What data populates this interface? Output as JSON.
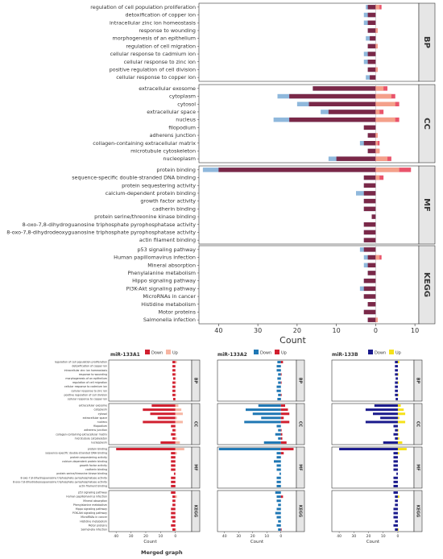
{
  "chart_data": [
    {
      "type": "bar",
      "orientation": "horizontal",
      "xlabel": "Count",
      "xlim": [
        -45,
        11
      ],
      "xticks": [
        "40",
        "30",
        "20",
        "10",
        "0",
        "10"
      ],
      "series_colors": {
        "down_a": "#7a2848",
        "up_a": "#f4a08a",
        "down_b": "#8fb8dc",
        "up_b": "#e9546b"
      },
      "facets": [
        {
          "name": "BP",
          "terms": [
            {
              "label": "regulation of cell population proliferation",
              "down": 2,
              "down_alt": 2.5,
              "up": 1,
              "up_alt": 1.5
            },
            {
              "label": "detoxification of copper ion",
              "down": 2,
              "down_alt": 3,
              "up": 0,
              "up_alt": 0
            },
            {
              "label": "intracellular zinc ion homeostasis",
              "down": 2,
              "down_alt": 3,
              "up": 0,
              "up_alt": 0
            },
            {
              "label": "response to wounding",
              "down": 2,
              "down_alt": 2,
              "up": 0.5,
              "up_alt": 0.5
            },
            {
              "label": "morphogenesis of an epithelium",
              "down": 1.5,
              "down_alt": 2.5,
              "up": 0,
              "up_alt": 0
            },
            {
              "label": "regulation of cell migration",
              "down": 2,
              "down_alt": 2,
              "up": 0.5,
              "up_alt": 0.5
            },
            {
              "label": "cellular response to cadmium ion",
              "down": 2,
              "down_alt": 3,
              "up": 0,
              "up_alt": 0
            },
            {
              "label": "cellular response to zinc ion",
              "down": 2,
              "down_alt": 3,
              "up": 0,
              "up_alt": 0
            },
            {
              "label": "positive regulation of cell division",
              "down": 2,
              "down_alt": 2,
              "up": 0.5,
              "up_alt": 0.5
            },
            {
              "label": "cellular response to copper ion",
              "down": 1.5,
              "down_alt": 2.5,
              "up": 0,
              "up_alt": 0
            }
          ]
        },
        {
          "name": "CC",
          "terms": [
            {
              "label": "extracellular exosome",
              "down": 16,
              "down_alt": 16,
              "up": 2,
              "up_alt": 3
            },
            {
              "label": "cytoplasm",
              "down": 22,
              "down_alt": 25,
              "up": 4,
              "up_alt": 5
            },
            {
              "label": "cytosol",
              "down": 17,
              "down_alt": 20,
              "up": 5,
              "up_alt": 6
            },
            {
              "label": "extracellular space",
              "down": 12,
              "down_alt": 14,
              "up": 1,
              "up_alt": 2
            },
            {
              "label": "nucleus",
              "down": 22,
              "down_alt": 26,
              "up": 5,
              "up_alt": 6
            },
            {
              "label": "filopodium",
              "down": 3,
              "down_alt": 3,
              "up": 0,
              "up_alt": 0
            },
            {
              "label": "adherens junction",
              "down": 2,
              "down_alt": 2,
              "up": 0.5,
              "up_alt": 0.5
            },
            {
              "label": "collagen-containing extracellular matrix",
              "down": 3,
              "down_alt": 4,
              "up": 0.5,
              "up_alt": 1
            },
            {
              "label": "microtubule cytoskeleton",
              "down": 2,
              "down_alt": 2,
              "up": 1,
              "up_alt": 1
            },
            {
              "label": "nucleoplasm",
              "down": 10,
              "down_alt": 12,
              "up": 3,
              "up_alt": 4
            }
          ]
        },
        {
          "name": "MF",
          "terms": [
            {
              "label": "protein binding",
              "down": 40,
              "down_alt": 44,
              "up": 6,
              "up_alt": 9
            },
            {
              "label": "sequence-specific double-stranded DNA binding",
              "down": 3,
              "down_alt": 3,
              "up": 1,
              "up_alt": 2
            },
            {
              "label": "protein sequestering activity",
              "down": 3,
              "down_alt": 3,
              "up": 0,
              "up_alt": 0
            },
            {
              "label": "calcium-dependent protein binding",
              "down": 3,
              "down_alt": 5,
              "up": 0,
              "up_alt": 0
            },
            {
              "label": "growth factor activity",
              "down": 3,
              "down_alt": 3,
              "up": 0,
              "up_alt": 0
            },
            {
              "label": "cadherin binding",
              "down": 3,
              "down_alt": 3,
              "up": 0,
              "up_alt": 0
            },
            {
              "label": "protein serine/threonine kinase binding",
              "down": 1,
              "down_alt": 1,
              "up": 0,
              "up_alt": 0
            },
            {
              "label": "8-oxo-7,8-dihydroguanosine triphosphate pyrophosphatase activity",
              "down": 3,
              "down_alt": 3,
              "up": 0,
              "up_alt": 0
            },
            {
              "label": "8-oxo-7,8-dihydrodeoxyguanosine triphosphate pyrophosphatase activity",
              "down": 3,
              "down_alt": 3,
              "up": 0,
              "up_alt": 0
            },
            {
              "label": "actin filament binding",
              "down": 3,
              "down_alt": 3,
              "up": 0,
              "up_alt": 0
            }
          ]
        },
        {
          "name": "KEGG",
          "terms": [
            {
              "label": "p53 signaling pathway",
              "down": 3,
              "down_alt": 4,
              "up": 0,
              "up_alt": 0
            },
            {
              "label": "Human papillomavirus infection",
              "down": 2,
              "down_alt": 3,
              "up": 1,
              "up_alt": 1.5
            },
            {
              "label": "Mineral absorption",
              "down": 2,
              "down_alt": 3,
              "up": 0,
              "up_alt": 0
            },
            {
              "label": "Phenylalanine metabolism",
              "down": 2,
              "down_alt": 2,
              "up": 0,
              "up_alt": 0
            },
            {
              "label": "Hippo signaling pathway",
              "down": 3,
              "down_alt": 3,
              "up": 0,
              "up_alt": 0
            },
            {
              "label": "PI3K-Akt signaling pathway",
              "down": 3,
              "down_alt": 4,
              "up": 0,
              "up_alt": 0
            },
            {
              "label": "MicroRNAs in cancer",
              "down": 3,
              "down_alt": 3,
              "up": 0,
              "up_alt": 0
            },
            {
              "label": "Histidine metabolism",
              "down": 2,
              "down_alt": 2,
              "up": 0,
              "up_alt": 0
            },
            {
              "label": "Motor proteins",
              "down": 3,
              "down_alt": 3,
              "up": 0,
              "up_alt": 0
            },
            {
              "label": "Salmonella infection",
              "down": 2,
              "down_alt": 2,
              "up": 0.5,
              "up_alt": 0.5
            }
          ]
        }
      ]
    },
    {
      "type": "bar",
      "orientation": "horizontal",
      "title": "Merged graph",
      "panels": [
        {
          "title": "miR-133A1",
          "legend": [
            "Down",
            "Up"
          ],
          "colors": {
            "down": "#d11f2f",
            "up": "#f7b6a3"
          }
        },
        {
          "title": "miR-133A2",
          "legend": [
            "Down",
            "Up"
          ],
          "colors": {
            "down": "#1f77b4",
            "up": "#d11f2f"
          }
        },
        {
          "title": "miR-133B",
          "legend": [
            "Down",
            "Up"
          ],
          "colors": {
            "down": "#1a1a8c",
            "up": "#f5e11a"
          }
        }
      ],
      "xlabel": "Count",
      "xticks": [
        "40",
        "30",
        "20",
        "10",
        "0"
      ]
    }
  ]
}
